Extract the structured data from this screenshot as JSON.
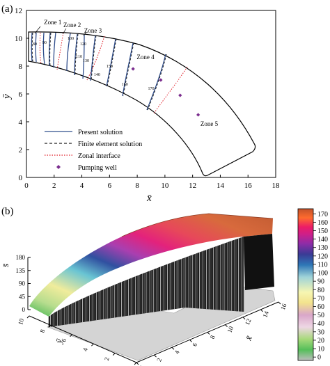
{
  "panel_a": {
    "label": "(a)",
    "xlabel": "x̄",
    "ylabel": "ȳ",
    "xticks": [
      0,
      2,
      4,
      6,
      8,
      10,
      12,
      14,
      16,
      18
    ],
    "yticks": [
      0,
      2,
      4,
      6,
      8,
      10,
      12
    ],
    "zone_labels": [
      {
        "text": "Zone 1",
        "x": 1.9,
        "y": 11.0
      },
      {
        "text": "Zone 2",
        "x": 3.3,
        "y": 10.8
      },
      {
        "text": "Zone 3",
        "x": 4.8,
        "y": 10.4
      },
      {
        "text": "Zone 4",
        "x": 8.6,
        "y": 8.5
      },
      {
        "text": "Zone 5",
        "x": 13.2,
        "y": 3.7
      }
    ],
    "contour_labels": [
      {
        "text": "80",
        "x": 0.6,
        "y": 9.5
      },
      {
        "text": "90",
        "x": 1.3,
        "y": 9.6
      },
      {
        "text": "100",
        "x": 3.2,
        "y": 9.9
      },
      {
        "text": "110",
        "x": 3.8,
        "y": 8.6
      },
      {
        "text": "120",
        "x": 4.1,
        "y": 9.5
      },
      {
        "text": "130",
        "x": 4.3,
        "y": 8.3
      },
      {
        "text": "140",
        "x": 5.1,
        "y": 7.3
      },
      {
        "text": "150",
        "x": 6.0,
        "y": 7.9
      },
      {
        "text": "160",
        "x": 7.1,
        "y": 6.6
      },
      {
        "text": "170",
        "x": 9.0,
        "y": 6.3
      }
    ],
    "wells": [
      {
        "x": 7.7,
        "y": 7.8
      },
      {
        "x": 9.7,
        "y": 7.0
      },
      {
        "x": 11.1,
        "y": 5.9
      },
      {
        "x": 12.4,
        "y": 4.5
      }
    ],
    "legend": [
      {
        "label": "Present solution",
        "style": "solid",
        "color": "#2f4d8c"
      },
      {
        "label": "Finite element solution",
        "style": "dashed",
        "color": "#222222"
      },
      {
        "label": "Zonal interface",
        "style": "dotted",
        "color": "#e0202a"
      },
      {
        "label": "Pumping well",
        "style": "diamond",
        "color": "#7b2d8e"
      }
    ]
  },
  "panel_b": {
    "label": "(b)",
    "zlabel": "s̄",
    "xlabel": "x̄",
    "ylabel": "ȳ",
    "zticks": [
      0,
      45,
      90,
      135,
      180
    ],
    "xticks": [
      0,
      2,
      4,
      6,
      8,
      10,
      12,
      14,
      16
    ],
    "yticks": [
      0,
      2,
      4,
      6,
      8,
      10
    ],
    "colorbar_ticks": [
      0,
      10,
      20,
      30,
      40,
      50,
      60,
      70,
      80,
      90,
      100,
      110,
      120,
      130,
      140,
      150,
      160,
      170
    ],
    "colorbar_stops": [
      "#bdbdbd",
      "#55bf5a",
      "#a7d97a",
      "#eed7e4",
      "#d9a6c9",
      "#f3e38d",
      "#f6f6b2",
      "#9fd3d8",
      "#2e76b6",
      "#3a3b95",
      "#8e2ca8",
      "#cc1f8a",
      "#ec1c67",
      "#ff6b2e",
      "#c2512a"
    ]
  },
  "chart_data": [
    {
      "type": "contour",
      "panel": "(a)",
      "xlabel": "x̄",
      "ylabel": "ȳ",
      "xlim": [
        0,
        18
      ],
      "ylim": [
        0,
        12
      ],
      "contour_levels": [
        80,
        90,
        100,
        110,
        120,
        130,
        140,
        150,
        160,
        170
      ],
      "series": [
        {
          "name": "Present solution"
        },
        {
          "name": "Finite element solution"
        },
        {
          "name": "Zonal interface"
        },
        {
          "name": "Pumping well",
          "points": [
            [
              7.7,
              7.8
            ],
            [
              9.7,
              7.0
            ],
            [
              11.1,
              5.9
            ],
            [
              12.4,
              4.5
            ]
          ]
        }
      ]
    },
    {
      "type": "surface",
      "panel": "(b)",
      "xlabel": "x̄",
      "ylabel": "ȳ",
      "zlabel": "s̄",
      "xlim": [
        0,
        16
      ],
      "ylim": [
        0,
        10
      ],
      "zlim": [
        0,
        180
      ],
      "colorbar_range": [
        0,
        170
      ]
    }
  ]
}
